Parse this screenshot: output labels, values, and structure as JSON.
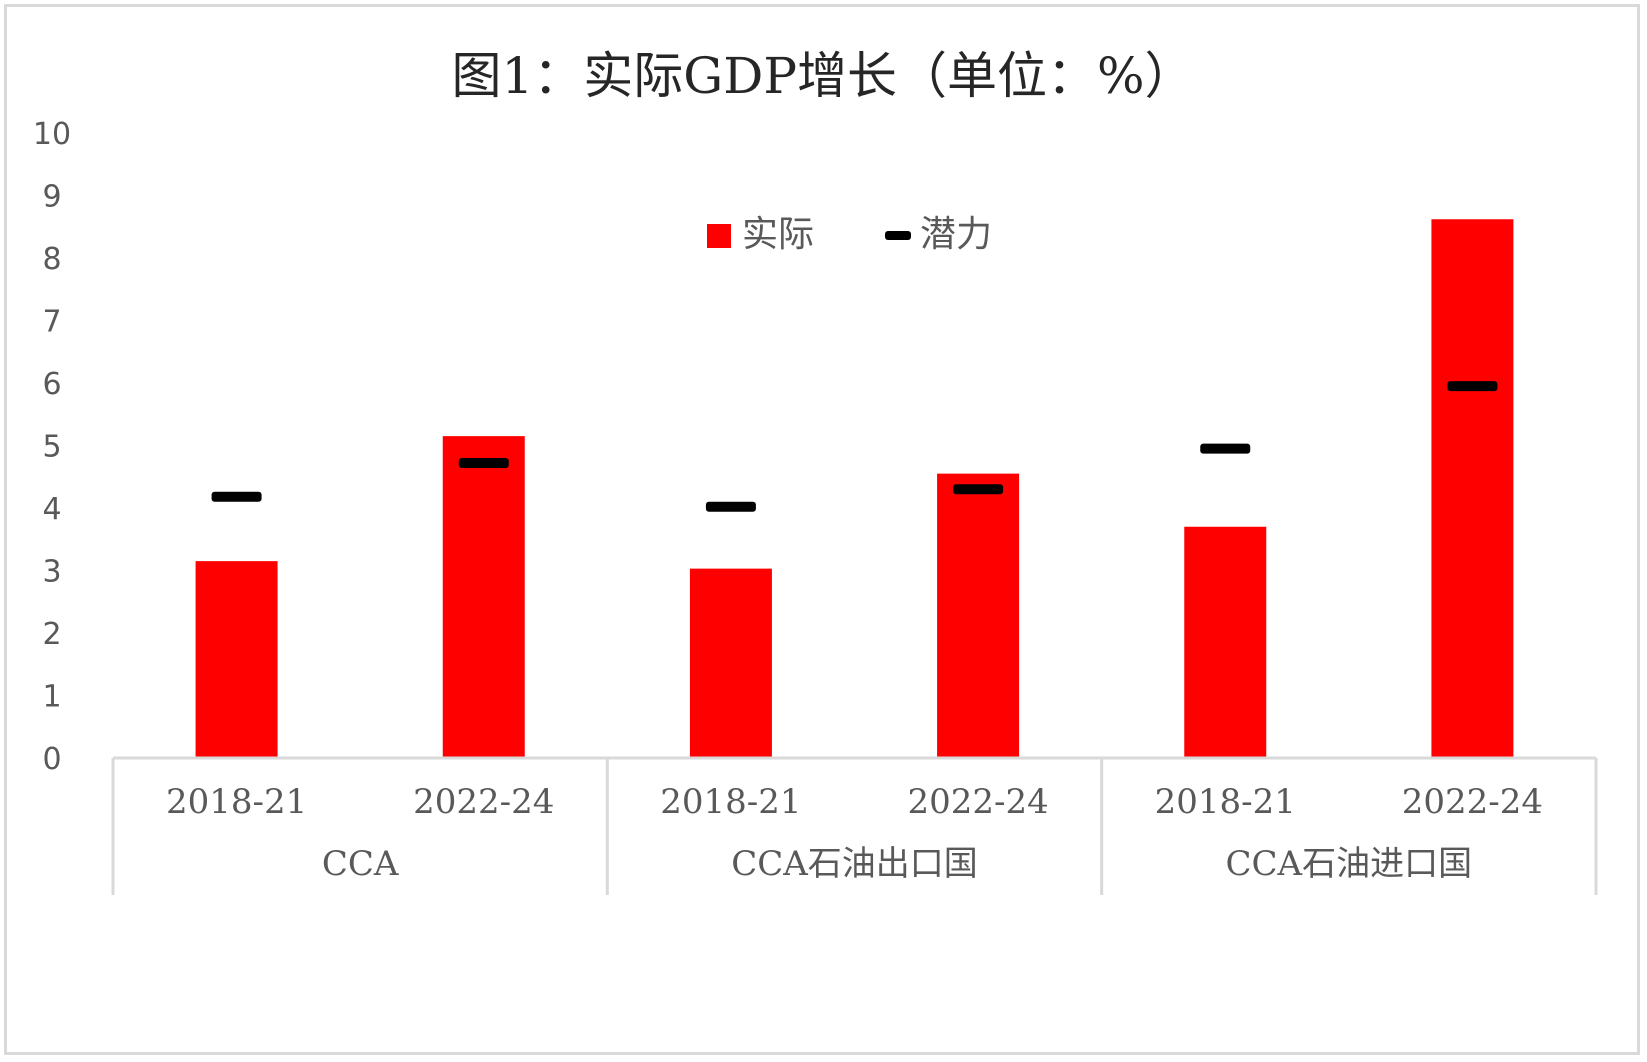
{
  "chart_data": {
    "type": "bar",
    "title": "图1：实际GDP增长（单位：%）",
    "ylim": [
      0,
      10
    ],
    "yticks": [
      "0",
      "1",
      "2",
      "3",
      "4",
      "5",
      "6",
      "7",
      "8",
      "9",
      "10"
    ],
    "groups": [
      {
        "label": "CCA",
        "categories": [
          "2018-21",
          "2022-24"
        ]
      },
      {
        "label": "CCA石油出口国",
        "categories": [
          "2018-21",
          "2022-24"
        ]
      },
      {
        "label": "CCA石油进口国",
        "categories": [
          "2018-21",
          "2022-24"
        ]
      }
    ],
    "series": [
      {
        "name": "实际",
        "kind": "bar",
        "color": "#ff0000",
        "values": [
          3.15,
          5.15,
          3.03,
          4.55,
          3.7,
          8.62
        ]
      },
      {
        "name": "潜力",
        "kind": "marker",
        "color": "#000000",
        "values": [
          4.18,
          4.72,
          4.02,
          4.3,
          4.95,
          5.95
        ]
      }
    ],
    "legend_position": "top-center",
    "grid": false
  }
}
